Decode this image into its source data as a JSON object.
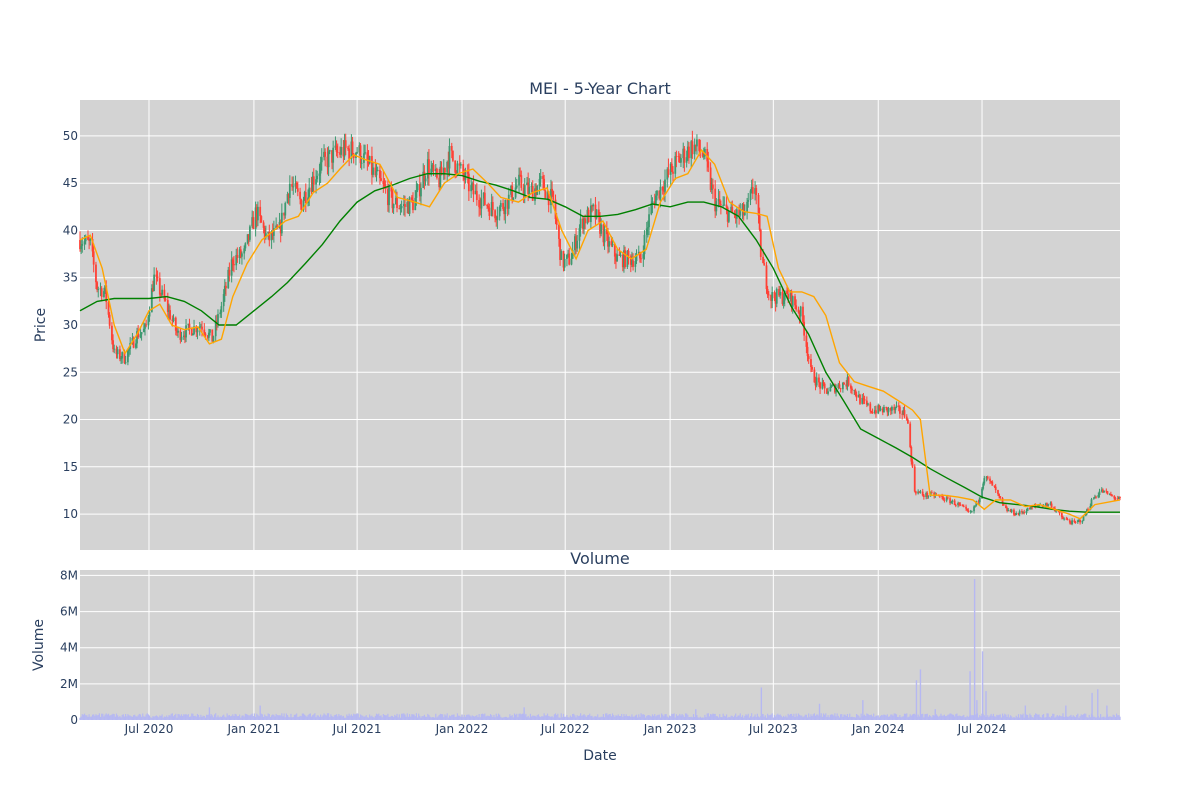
{
  "chart_data": [
    {
      "type": "candlestick",
      "title": "MEI - 5-Year Chart",
      "xlabel": "",
      "ylabel": "Price",
      "ylim": [
        6.2,
        53.8
      ],
      "yticks": [
        10,
        15,
        20,
        25,
        30,
        35,
        40,
        45,
        50
      ],
      "x_range": [
        "2020-03-02",
        "2025-02-28"
      ],
      "grid": true,
      "legend": "none",
      "background": "#d3d3d3",
      "colors": {
        "up": "#3d9970",
        "down": "#ff4136",
        "ma_short": "#ffa500",
        "ma_long": "#008000"
      },
      "price_trend": {
        "dates": [
          "2020-03-02",
          "2020-03-20",
          "2020-04-01",
          "2020-04-15",
          "2020-05-01",
          "2020-05-20",
          "2020-06-10",
          "2020-06-25",
          "2020-07-10",
          "2020-08-01",
          "2020-08-20",
          "2020-09-10",
          "2020-10-01",
          "2020-10-20",
          "2020-11-05",
          "2020-11-25",
          "2020-12-15",
          "2021-01-05",
          "2021-01-25",
          "2021-02-15",
          "2021-03-05",
          "2021-03-25",
          "2021-04-10",
          "2021-04-30",
          "2021-05-20",
          "2021-06-10",
          "2021-07-01",
          "2021-07-20",
          "2021-08-10",
          "2021-09-01",
          "2021-09-20",
          "2021-10-10",
          "2021-11-01",
          "2021-11-20",
          "2021-12-10",
          "2022-01-01",
          "2022-01-20",
          "2022-02-10",
          "2022-03-01",
          "2022-03-20",
          "2022-04-10",
          "2022-05-01",
          "2022-05-20",
          "2022-06-10",
          "2022-06-25",
          "2022-07-10",
          "2022-07-30",
          "2022-08-20",
          "2022-09-10",
          "2022-10-01",
          "2022-10-20",
          "2022-11-10",
          "2022-12-01",
          "2022-12-20",
          "2023-01-10",
          "2023-01-25",
          "2023-02-10",
          "2023-03-01",
          "2023-03-20",
          "2023-04-10",
          "2023-04-25",
          "2023-05-15",
          "2023-05-30",
          "2023-06-10",
          "2023-06-25",
          "2023-07-10",
          "2023-07-30",
          "2023-08-20",
          "2023-09-05",
          "2023-09-15",
          "2023-10-01",
          "2023-10-20",
          "2023-11-10",
          "2023-12-01",
          "2023-12-20",
          "2024-01-10",
          "2024-02-01",
          "2024-02-20",
          "2024-03-05",
          "2024-03-20",
          "2024-04-10",
          "2024-05-01",
          "2024-05-20",
          "2024-06-10",
          "2024-06-25",
          "2024-07-05",
          "2024-07-20",
          "2024-08-10",
          "2024-09-01",
          "2024-09-20",
          "2024-10-10",
          "2024-10-30",
          "2024-11-20",
          "2024-12-10",
          "2024-12-25",
          "2025-01-10",
          "2025-01-25",
          "2025-02-10",
          "2025-02-28"
        ],
        "values": [
          39,
          38.5,
          34,
          33.5,
          27,
          26.5,
          29,
          29.5,
          35,
          32,
          29,
          29.5,
          30,
          28.5,
          32,
          37,
          37.5,
          42,
          39,
          40,
          45,
          43,
          45,
          47,
          48,
          48.5,
          48.5,
          47,
          45,
          43,
          42.5,
          43,
          47,
          45,
          48,
          46,
          44,
          43,
          42,
          43,
          45,
          44,
          45,
          43,
          36.5,
          37,
          41,
          42,
          39,
          37,
          37,
          37,
          43,
          45,
          47,
          48,
          49,
          48,
          43,
          42,
          41.5,
          42,
          45,
          37,
          33,
          33,
          33,
          31,
          25,
          24,
          23,
          23.5,
          24,
          22,
          21,
          21,
          21,
          20.5,
          12.5,
          12,
          12,
          11.5,
          11,
          10,
          11.5,
          14,
          13,
          10.5,
          10,
          10.5,
          11,
          11,
          9.5,
          9,
          9.5,
          11.5,
          12.5,
          12,
          11.5
        ]
      },
      "moving_average_short": {
        "dates": [
          "2020-03-02",
          "2020-03-20",
          "2020-04-10",
          "2020-05-01",
          "2020-05-20",
          "2020-06-10",
          "2020-07-01",
          "2020-07-20",
          "2020-08-10",
          "2020-09-01",
          "2020-09-25",
          "2020-10-15",
          "2020-11-05",
          "2020-11-25",
          "2020-12-20",
          "2021-01-15",
          "2021-02-05",
          "2021-02-25",
          "2021-03-20",
          "2021-04-15",
          "2021-05-10",
          "2021-06-01",
          "2021-06-25",
          "2021-07-15",
          "2021-08-10",
          "2021-09-10",
          "2021-10-10",
          "2021-11-05",
          "2021-12-01",
          "2021-12-25",
          "2022-01-20",
          "2022-02-15",
          "2022-03-10",
          "2022-04-10",
          "2022-05-05",
          "2022-05-30",
          "2022-06-25",
          "2022-07-20",
          "2022-08-10",
          "2022-09-05",
          "2022-10-01",
          "2022-10-25",
          "2022-11-20",
          "2022-12-15",
          "2023-01-10",
          "2023-02-01",
          "2023-02-25",
          "2023-03-20",
          "2023-04-15",
          "2023-05-10",
          "2023-06-01",
          "2023-06-20",
          "2023-07-10",
          "2023-07-30",
          "2023-08-20",
          "2023-09-10",
          "2023-10-01",
          "2023-10-25",
          "2023-11-20",
          "2023-12-15",
          "2024-01-10",
          "2024-02-05",
          "2024-03-01",
          "2024-03-15",
          "2024-04-01",
          "2024-04-25",
          "2024-05-20",
          "2024-06-15",
          "2024-07-05",
          "2024-07-25",
          "2024-08-20",
          "2024-09-15",
          "2024-10-10",
          "2024-11-05",
          "2024-12-01",
          "2024-12-20",
          "2025-01-15",
          "2025-02-28"
        ],
        "values": [
          39,
          39.5,
          36,
          30,
          27,
          29,
          31.5,
          32.2,
          30,
          29.5,
          29.8,
          28,
          28.5,
          33,
          36.5,
          39,
          40,
          41,
          41.5,
          44,
          45,
          46.5,
          48,
          47.5,
          47,
          43.5,
          43,
          42.5,
          45,
          46,
          46.5,
          45,
          43.5,
          43,
          44,
          44.5,
          40,
          37,
          40,
          41,
          38,
          37,
          38,
          43,
          45.5,
          46,
          48.5,
          47,
          43,
          42,
          41.8,
          41.5,
          36,
          33.5,
          33.5,
          33,
          31,
          26,
          24,
          23.5,
          23,
          22,
          21,
          20,
          12,
          12,
          11.8,
          11.5,
          10.5,
          11.5,
          11.5,
          10.8,
          11,
          10.5,
          10,
          9.5,
          11,
          11.5
        ]
      },
      "moving_average_long": {
        "dates": [
          "2020-03-02",
          "2020-04-01",
          "2020-05-01",
          "2020-06-01",
          "2020-07-01",
          "2020-08-01",
          "2020-09-01",
          "2020-10-01",
          "2020-11-01",
          "2020-12-01",
          "2021-01-01",
          "2021-02-01",
          "2021-03-01",
          "2021-04-01",
          "2021-05-01",
          "2021-06-01",
          "2021-07-01",
          "2021-08-01",
          "2021-09-01",
          "2021-10-01",
          "2021-11-01",
          "2021-12-01",
          "2022-01-01",
          "2022-02-01",
          "2022-03-01",
          "2022-04-01",
          "2022-05-01",
          "2022-06-01",
          "2022-07-01",
          "2022-08-01",
          "2022-09-01",
          "2022-10-01",
          "2022-11-01",
          "2022-12-01",
          "2023-01-01",
          "2023-02-01",
          "2023-03-01",
          "2023-04-01",
          "2023-05-01",
          "2023-06-01",
          "2023-07-01",
          "2023-08-01",
          "2023-09-01",
          "2023-10-01",
          "2023-11-01",
          "2023-12-01",
          "2024-01-01",
          "2024-02-01",
          "2024-03-01",
          "2024-04-01",
          "2024-05-01",
          "2024-06-01",
          "2024-07-01",
          "2024-08-01",
          "2024-09-01",
          "2024-10-01",
          "2024-11-01",
          "2024-12-01",
          "2025-01-01",
          "2025-02-01",
          "2025-02-28"
        ],
        "values": [
          31.5,
          32.5,
          32.8,
          32.8,
          32.8,
          33,
          32.5,
          31.5,
          30,
          30,
          31.5,
          33,
          34.5,
          36.5,
          38.5,
          41,
          43,
          44.2,
          44.8,
          45.5,
          46,
          46,
          45.8,
          45.2,
          44.8,
          44.2,
          43.5,
          43.3,
          42.5,
          41.5,
          41.5,
          41.7,
          42.2,
          42.8,
          42.5,
          43,
          43,
          42.5,
          41.5,
          39,
          36,
          32,
          29,
          25,
          22,
          19,
          18,
          17,
          16,
          14.8,
          13.8,
          12.8,
          11.8,
          11.2,
          11,
          10.8,
          10.5,
          10.3,
          10.2,
          10.2,
          10.2
        ]
      }
    },
    {
      "type": "bar",
      "title": "Volume",
      "xlabel": "Date",
      "ylabel": "Volume",
      "ylim": [
        0,
        8300000
      ],
      "ytick_values": [
        0,
        2000000,
        4000000,
        6000000,
        8000000
      ],
      "ytick_labels": [
        "0",
        "2M",
        "4M",
        "6M",
        "8M"
      ],
      "xtick_dates": [
        "2020-07-01",
        "2021-01-01",
        "2021-07-01",
        "2022-01-01",
        "2022-07-01",
        "2023-01-01",
        "2023-07-01",
        "2024-01-01",
        "2024-07-01"
      ],
      "xtick_labels": [
        "Jul 2020",
        "Jan 2021",
        "Jul 2021",
        "Jan 2022",
        "Jul 2022",
        "Jan 2023",
        "Jul 2023",
        "Jan 2024",
        "Jul 2024"
      ],
      "x_range": [
        "2020-03-02",
        "2025-02-28"
      ],
      "grid": true,
      "background": "#d3d3d3",
      "bar_color": "#b6b8f2",
      "baseline_volume": 250000,
      "spikes": [
        {
          "date": "2020-10-15",
          "value": 700000
        },
        {
          "date": "2021-01-12",
          "value": 800000
        },
        {
          "date": "2022-04-20",
          "value": 700000
        },
        {
          "date": "2023-02-15",
          "value": 600000
        },
        {
          "date": "2023-06-10",
          "value": 1800000
        },
        {
          "date": "2023-09-20",
          "value": 900000
        },
        {
          "date": "2023-12-05",
          "value": 1100000
        },
        {
          "date": "2024-03-08",
          "value": 2200000
        },
        {
          "date": "2024-03-15",
          "value": 2800000
        },
        {
          "date": "2024-04-10",
          "value": 600000
        },
        {
          "date": "2024-06-10",
          "value": 2700000
        },
        {
          "date": "2024-06-18",
          "value": 7800000
        },
        {
          "date": "2024-06-22",
          "value": 1100000
        },
        {
          "date": "2024-07-02",
          "value": 3800000
        },
        {
          "date": "2024-07-08",
          "value": 1600000
        },
        {
          "date": "2024-09-15",
          "value": 800000
        },
        {
          "date": "2024-11-25",
          "value": 800000
        },
        {
          "date": "2025-01-10",
          "value": 1500000
        },
        {
          "date": "2025-01-20",
          "value": 1700000
        },
        {
          "date": "2025-02-05",
          "value": 800000
        }
      ]
    }
  ]
}
